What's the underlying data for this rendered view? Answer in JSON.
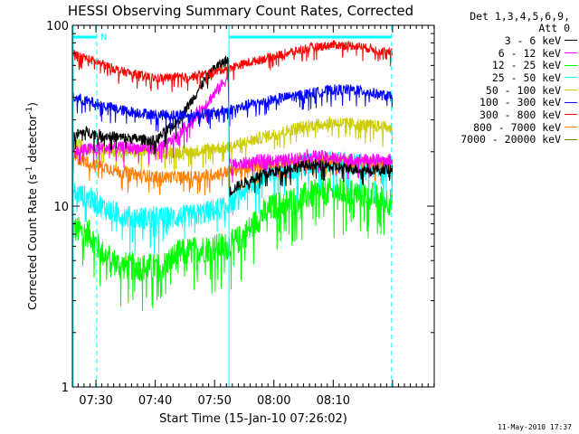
{
  "chart_data": {
    "type": "line",
    "title": "HESSI Observing Summary Count Rates, Corrected",
    "xlabel": "Start Time (15-Jan-10 07:26:02)",
    "ylabel": "Corrected Count Rate (s⁻¹ detector⁻¹)",
    "ylabel_parts": {
      "base": "Corrected Count Rate (s",
      "exp1": "-1",
      "mid": " detector",
      "exp2": "-1",
      "end": ")"
    },
    "yscale": "log",
    "ylim": [
      1,
      100
    ],
    "y_ticks": [
      "1",
      "10",
      "100"
    ],
    "xlim_minutes": [
      0,
      61
    ],
    "x_ticks": [
      {
        "label": "07:30",
        "min": 3.97
      },
      {
        "label": "07:40",
        "min": 13.97
      },
      {
        "label": "07:50",
        "min": 23.97
      },
      {
        "label": "08:00",
        "min": 33.97
      },
      {
        "label": "08:10",
        "min": 43.97
      }
    ],
    "markers": [
      {
        "type": "solid",
        "min": 0.15
      },
      {
        "type": "dashed",
        "min": 4.1
      },
      {
        "type": "solid",
        "min": 26.4
      },
      {
        "type": "dashed",
        "min": 53.8
      }
    ],
    "flags": [
      {
        "label": "N",
        "from": 0.15,
        "to": 4.1
      },
      {
        "label": "",
        "from": 26.4,
        "to": 53.8
      }
    ],
    "legend_header": [
      "Det 1,3,4,5,6,9,",
      "Att 0"
    ],
    "series": [
      {
        "name": "3 - 6 keV",
        "color": "#000000",
        "keyframes": [
          [
            0,
            24
          ],
          [
            2,
            26
          ],
          [
            4,
            25
          ],
          [
            8,
            24
          ],
          [
            14,
            23
          ],
          [
            18,
            30
          ],
          [
            20,
            38
          ],
          [
            22,
            48
          ],
          [
            24,
            58
          ],
          [
            26.3,
            65
          ],
          [
            26.5,
            12
          ],
          [
            28,
            13
          ],
          [
            32,
            15
          ],
          [
            36,
            16
          ],
          [
            40,
            17
          ],
          [
            44,
            16.5
          ],
          [
            48,
            16
          ],
          [
            54,
            16
          ]
        ]
      },
      {
        "name": "6 - 12 keV",
        "color": "#ff00ff",
        "keyframes": [
          [
            0,
            20
          ],
          [
            4,
            21
          ],
          [
            8,
            21
          ],
          [
            14,
            21
          ],
          [
            16,
            22
          ],
          [
            18,
            25
          ],
          [
            20,
            30
          ],
          [
            22,
            35
          ],
          [
            24,
            42
          ],
          [
            26.3,
            52
          ],
          [
            26.5,
            17
          ],
          [
            28,
            17
          ],
          [
            32,
            18
          ],
          [
            36,
            18
          ],
          [
            40,
            19
          ],
          [
            44,
            18.5
          ],
          [
            48,
            18
          ],
          [
            54,
            18
          ]
        ]
      },
      {
        "name": "12 - 25 keV",
        "color": "#00ff00",
        "keyframes": [
          [
            0,
            7.5
          ],
          [
            3,
            7
          ],
          [
            5,
            5.5
          ],
          [
            8,
            4.7
          ],
          [
            12,
            4.6
          ],
          [
            15,
            4.6
          ],
          [
            18,
            5.5
          ],
          [
            22,
            5.8
          ],
          [
            26,
            6
          ],
          [
            28,
            6.5
          ],
          [
            30,
            7.5
          ],
          [
            32,
            9
          ],
          [
            34,
            10
          ],
          [
            38,
            11
          ],
          [
            42,
            12
          ],
          [
            46,
            12
          ],
          [
            50,
            11.5
          ],
          [
            54,
            10.5
          ]
        ]
      },
      {
        "name": "25 - 50 keV",
        "color": "#00ffff",
        "keyframes": [
          [
            0,
            12
          ],
          [
            3,
            11
          ],
          [
            6,
            9.5
          ],
          [
            10,
            8.6
          ],
          [
            16,
            8.6
          ],
          [
            20,
            8.8
          ],
          [
            24,
            9.5
          ],
          [
            26,
            10
          ],
          [
            28,
            11.5
          ],
          [
            30,
            13
          ],
          [
            32,
            15
          ],
          [
            36,
            16
          ],
          [
            40,
            17
          ],
          [
            44,
            17.5
          ],
          [
            48,
            17
          ],
          [
            54,
            16
          ]
        ]
      },
      {
        "name": "50 - 100 keV",
        "color": "#cccc00",
        "keyframes": [
          [
            0,
            22
          ],
          [
            4,
            21
          ],
          [
            8,
            20
          ],
          [
            14,
            20
          ],
          [
            20,
            20
          ],
          [
            24,
            21
          ],
          [
            26,
            21
          ],
          [
            28,
            22
          ],
          [
            32,
            24
          ],
          [
            36,
            26
          ],
          [
            40,
            28
          ],
          [
            44,
            29
          ],
          [
            48,
            28.5
          ],
          [
            54,
            27
          ]
        ]
      },
      {
        "name": "100 - 300 keV",
        "color": "#0000ff",
        "keyframes": [
          [
            0,
            40
          ],
          [
            4,
            37
          ],
          [
            8,
            34
          ],
          [
            14,
            32
          ],
          [
            20,
            32
          ],
          [
            24,
            33
          ],
          [
            26,
            34
          ],
          [
            28,
            35
          ],
          [
            32,
            38
          ],
          [
            36,
            40
          ],
          [
            40,
            42
          ],
          [
            44,
            44
          ],
          [
            48,
            44
          ],
          [
            54,
            40
          ]
        ]
      },
      {
        "name": "300 - 800 keV",
        "color": "#ff0000",
        "keyframes": [
          [
            0,
            70
          ],
          [
            4,
            63
          ],
          [
            8,
            56
          ],
          [
            14,
            51
          ],
          [
            20,
            52
          ],
          [
            24,
            55
          ],
          [
            26,
            58
          ],
          [
            28,
            60
          ],
          [
            32,
            65
          ],
          [
            36,
            70
          ],
          [
            40,
            75
          ],
          [
            44,
            78
          ],
          [
            48,
            77
          ],
          [
            54,
            70
          ]
        ]
      },
      {
        "name": "800 - 7000 keV",
        "color": "#ff8000",
        "keyframes": [
          [
            0,
            18.5
          ],
          [
            4,
            17
          ],
          [
            8,
            15.5
          ],
          [
            14,
            14.5
          ],
          [
            20,
            14.5
          ],
          [
            24,
            15
          ],
          [
            26,
            15.5
          ],
          [
            28,
            16
          ],
          [
            32,
            17
          ],
          [
            36,
            17.5
          ],
          [
            40,
            18
          ],
          [
            44,
            18
          ],
          [
            48,
            17.5
          ],
          [
            54,
            17
          ]
        ]
      },
      {
        "name": "7000 - 20000 keV",
        "color": "#808000",
        "keyframes": []
      }
    ]
  },
  "footer_text": "11-May-2010 17:37"
}
